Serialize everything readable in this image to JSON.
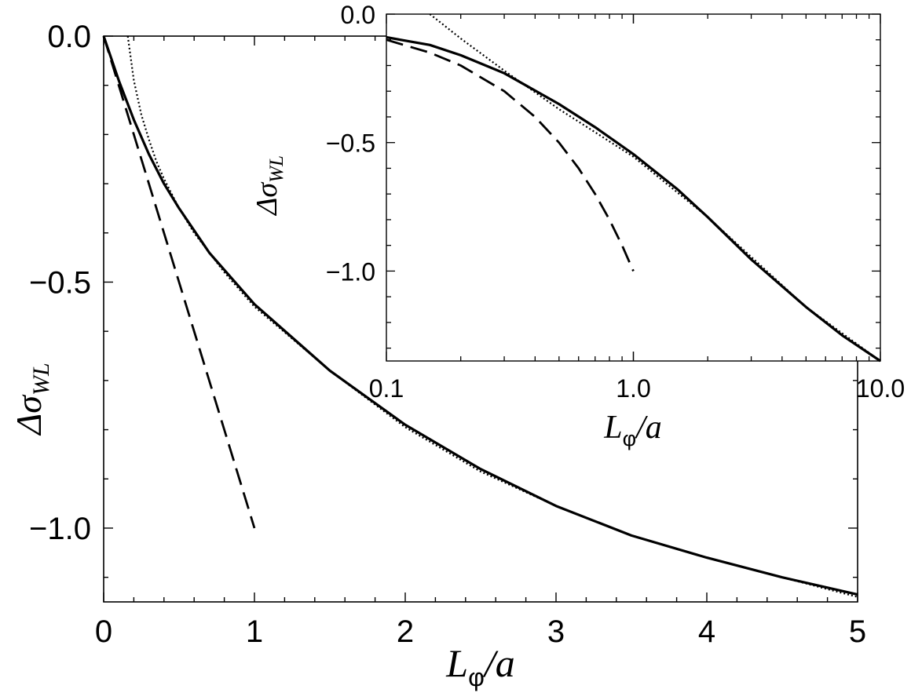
{
  "chart_data": [
    {
      "type": "line",
      "panel": "main",
      "x_scale": "linear",
      "xlim": [
        0,
        5
      ],
      "ylim": [
        -1.15,
        0
      ],
      "xticks": [
        "0",
        "1",
        "2",
        "3",
        "4",
        "5"
      ],
      "yticks": [
        "0.0",
        "−0.5",
        "−1.0"
      ],
      "xlabel": {
        "base": "L",
        "sub": "φ",
        "rest": "/a"
      },
      "ylabel": {
        "base": "Δσ",
        "sub": "WL"
      },
      "grid": false,
      "series": [
        {
          "style": "solid",
          "x": [
            0,
            0.1,
            0.2,
            0.3,
            0.4,
            0.5,
            0.7,
            1.0,
            1.5,
            2.0,
            2.5,
            3.0,
            3.5,
            4.0,
            4.5,
            5.0
          ],
          "y": [
            0,
            -0.09,
            -0.17,
            -0.24,
            -0.3,
            -0.35,
            -0.44,
            -0.545,
            -0.68,
            -0.79,
            -0.88,
            -0.955,
            -1.015,
            -1.06,
            -1.1,
            -1.135
          ]
        },
        {
          "style": "dashed",
          "x": [
            0,
            0.2,
            0.4,
            0.6,
            0.8,
            1.0
          ],
          "y": [
            0,
            -0.2,
            -0.4,
            -0.6,
            -0.8,
            -1.0
          ]
        },
        {
          "style": "dotted",
          "x": [
            0.16,
            0.2,
            0.25,
            0.3,
            0.35,
            0.4,
            0.5,
            0.6,
            0.8,
            1.0,
            1.5,
            2.0,
            2.5,
            3.0,
            3.5,
            4.0,
            4.5,
            5.0
          ],
          "y": [
            0,
            -0.09,
            -0.16,
            -0.21,
            -0.255,
            -0.29,
            -0.35,
            -0.4,
            -0.48,
            -0.55,
            -0.68,
            -0.795,
            -0.885,
            -0.955,
            -1.015,
            -1.06,
            -1.1,
            -1.14
          ]
        }
      ]
    },
    {
      "type": "line",
      "panel": "inset",
      "x_scale": "log",
      "xlim": [
        0.1,
        10
      ],
      "ylim": [
        -1.35,
        0
      ],
      "xticks": [
        "0.1",
        "1.0",
        "10.0"
      ],
      "yticks": [
        "0.0",
        "−0.5",
        "−1.0"
      ],
      "xlabel": {
        "base": "L",
        "sub": "φ",
        "rest": "/a"
      },
      "ylabel": {
        "base": "Δσ",
        "sub": "WL"
      },
      "grid": false,
      "series": [
        {
          "style": "solid",
          "x": [
            0.1,
            0.15,
            0.2,
            0.3,
            0.5,
            0.7,
            1.0,
            1.5,
            2,
            3,
            5,
            7,
            10
          ],
          "y": [
            -0.09,
            -0.12,
            -0.16,
            -0.23,
            -0.35,
            -0.44,
            -0.545,
            -0.68,
            -0.79,
            -0.955,
            -1.14,
            -1.25,
            -1.35
          ]
        },
        {
          "style": "dashed",
          "x": [
            0.1,
            0.15,
            0.2,
            0.3,
            0.4,
            0.5,
            0.6,
            0.7,
            0.8,
            0.9,
            1.0
          ],
          "y": [
            -0.1,
            -0.15,
            -0.2,
            -0.3,
            -0.4,
            -0.5,
            -0.6,
            -0.7,
            -0.8,
            -0.9,
            -1.0
          ]
        },
        {
          "style": "dotted",
          "x": [
            0.15,
            0.2,
            0.3,
            0.5,
            1.0,
            2,
            5,
            10
          ],
          "y": [
            0,
            -0.095,
            -0.22,
            -0.37,
            -0.555,
            -0.79,
            -1.14,
            -1.35
          ]
        }
      ]
    }
  ]
}
